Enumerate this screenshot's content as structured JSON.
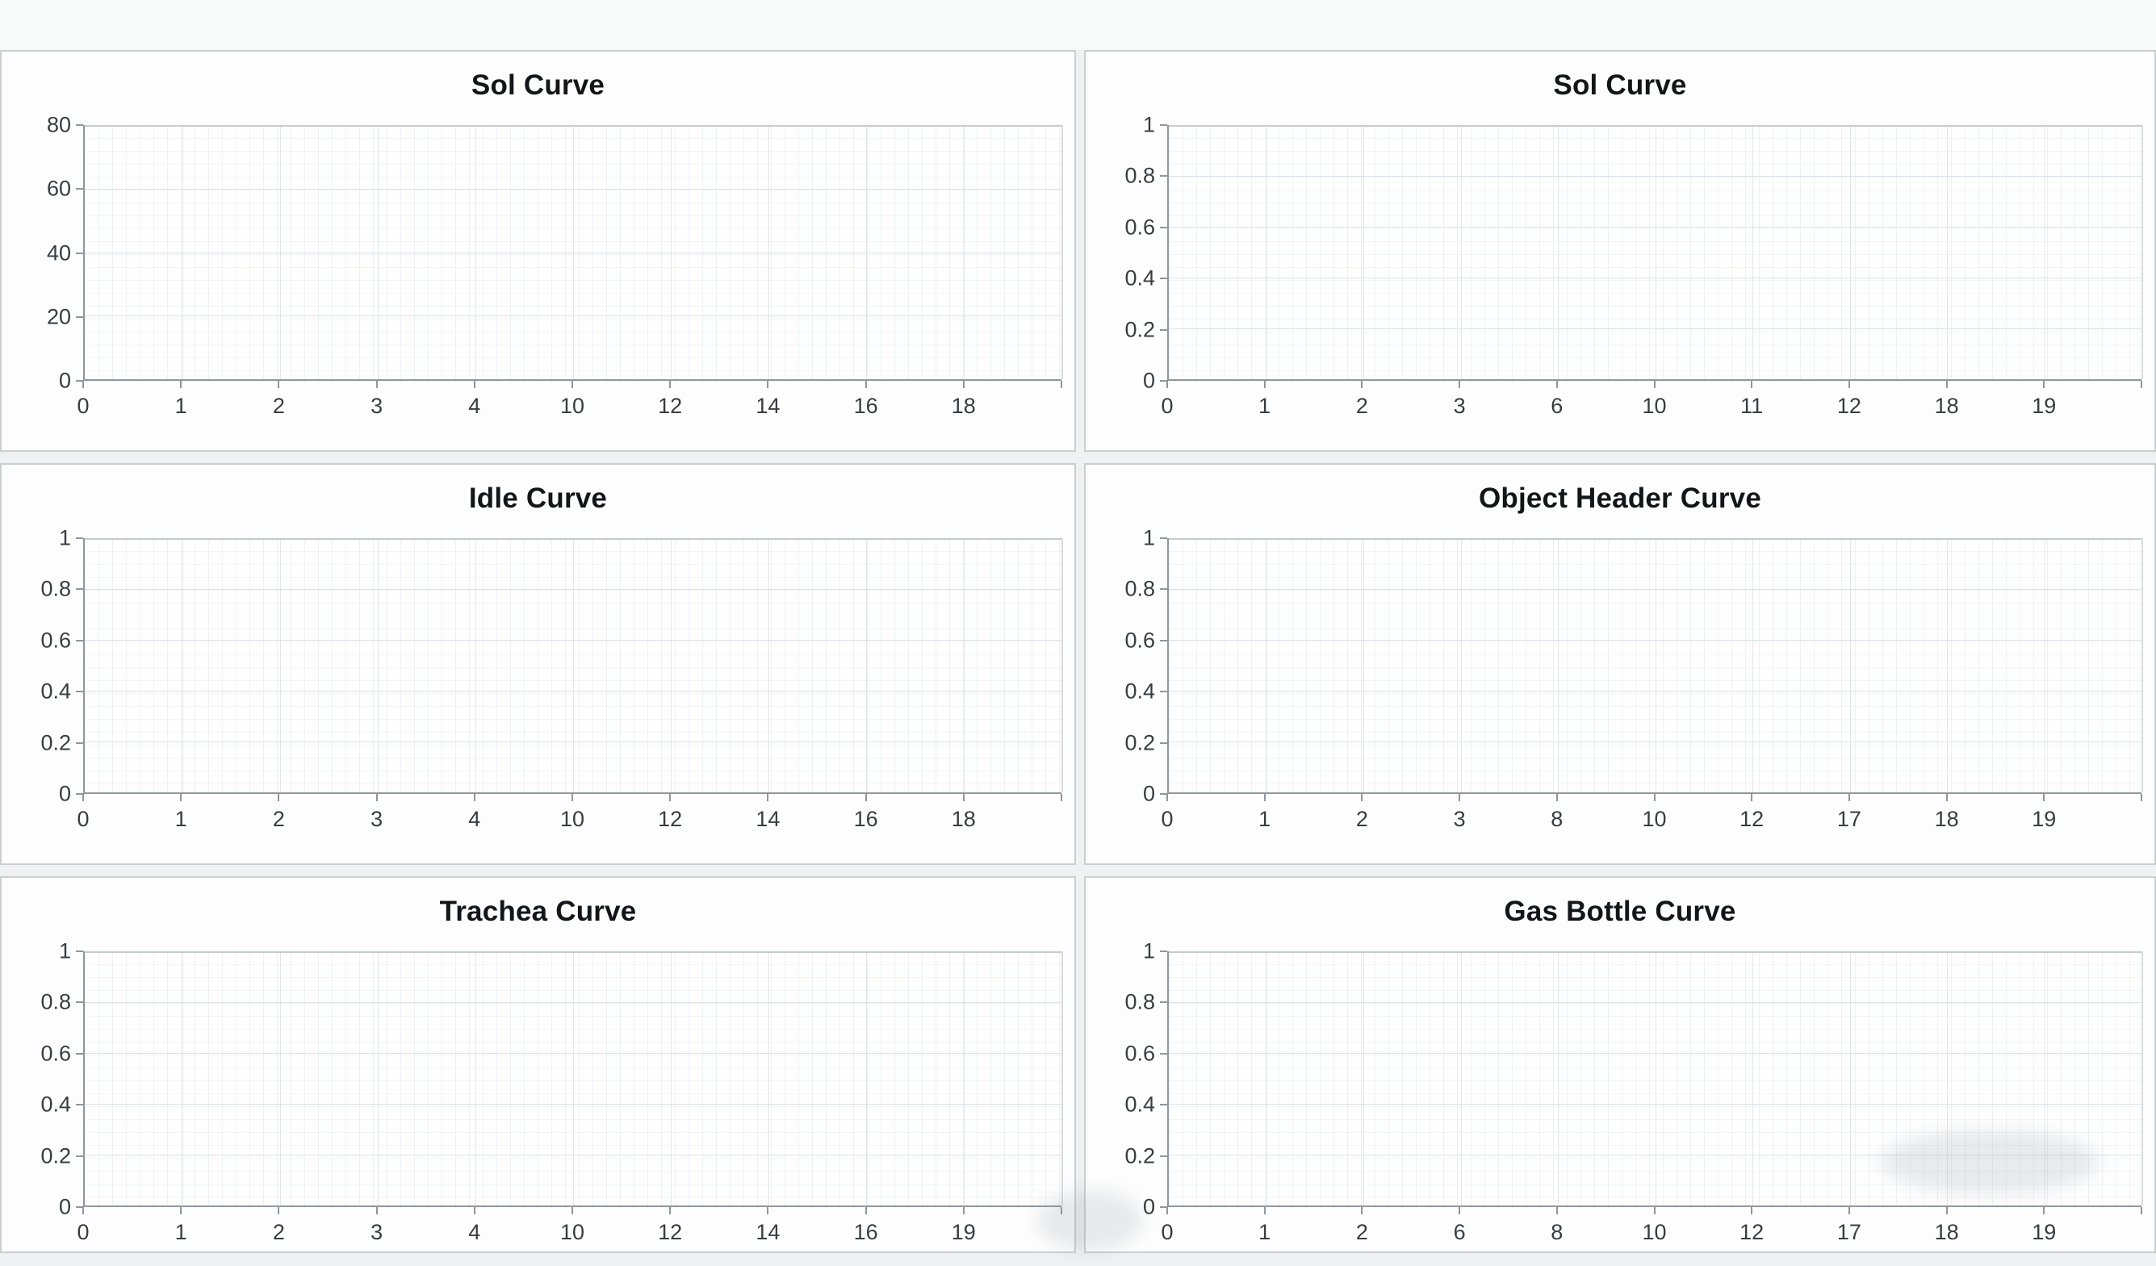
{
  "page": {
    "background": "#eff1f2",
    "top_strip_background": "#f8f9f9",
    "panel_background": "#fdfdfd",
    "panel_border": "#cbced0",
    "axis_color": "#8f979d",
    "grid_major_color": "#dde2e5",
    "tick_text_color": "#383d42",
    "title_color": "#131619"
  },
  "chart_data": [
    {
      "id": "sol-curve-1",
      "type": "line",
      "title": "Sol Curve",
      "x_ticks": [
        "0",
        "1",
        "2",
        "3",
        "4",
        "10",
        "12",
        "14",
        "16",
        "18"
      ],
      "y_ticks": [
        "0",
        "20",
        "40",
        "60",
        "80"
      ],
      "ylim": [
        0,
        80
      ],
      "grid": true,
      "legend": null,
      "series": []
    },
    {
      "id": "sol-curve-2",
      "type": "line",
      "title": "Sol Curve",
      "x_ticks": [
        "0",
        "1",
        "2",
        "3",
        "6",
        "10",
        "11",
        "12",
        "18",
        "19"
      ],
      "y_ticks": [
        "0",
        "0.2",
        "0.4",
        "0.6",
        "0.8",
        "1"
      ],
      "ylim": [
        0,
        1
      ],
      "grid": true,
      "legend": null,
      "series": []
    },
    {
      "id": "idle-curve",
      "type": "line",
      "title": "Idle Curve",
      "x_ticks": [
        "0",
        "1",
        "2",
        "3",
        "4",
        "10",
        "12",
        "14",
        "16",
        "18"
      ],
      "y_ticks": [
        "0",
        "0.2",
        "0.4",
        "0.6",
        "0.8",
        "1"
      ],
      "ylim": [
        0,
        1
      ],
      "grid": true,
      "legend": null,
      "series": []
    },
    {
      "id": "object-header-curve",
      "type": "line",
      "title": "Object Header Curve",
      "x_ticks": [
        "0",
        "1",
        "2",
        "3",
        "8",
        "10",
        "12",
        "17",
        "18",
        "19"
      ],
      "y_ticks": [
        "0",
        "0.2",
        "0.4",
        "0.6",
        "0.8",
        "1"
      ],
      "ylim": [
        0,
        1
      ],
      "grid": true,
      "legend": null,
      "series": []
    },
    {
      "id": "trachea-curve",
      "type": "line",
      "title": "Trachea Curve",
      "x_ticks": [
        "0",
        "1",
        "2",
        "3",
        "4",
        "10",
        "12",
        "14",
        "16",
        "19"
      ],
      "y_ticks": [
        "0",
        "0.2",
        "0.4",
        "0.6",
        "0.8",
        "1"
      ],
      "ylim": [
        0,
        1
      ],
      "grid": true,
      "legend": null,
      "series": []
    },
    {
      "id": "gas-bottle-curve",
      "type": "line",
      "title": "Gas Bottle Curve",
      "x_ticks": [
        "0",
        "1",
        "2",
        "6",
        "8",
        "10",
        "12",
        "17",
        "18",
        "19"
      ],
      "y_ticks": [
        "0",
        "0.2",
        "0.4",
        "0.6",
        "0.8",
        "1"
      ],
      "ylim": [
        0,
        1
      ],
      "grid": true,
      "legend": null,
      "series": []
    }
  ]
}
